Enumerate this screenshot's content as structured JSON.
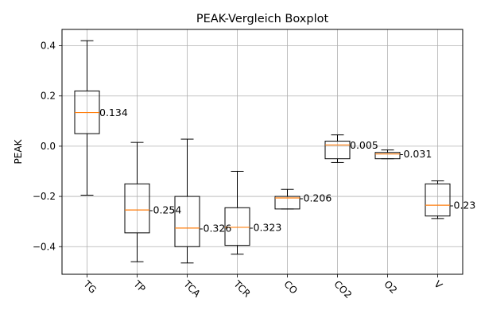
{
  "chart_data": {
    "type": "boxplot",
    "title": "PEAK-Vergleich Boxplot",
    "xlabel": "",
    "ylabel": "PEAK",
    "ylim": [
      -0.51,
      0.465
    ],
    "yticks": [
      0.4,
      0.2,
      0.0,
      -0.2,
      -0.4
    ],
    "ytick_labels": [
      "0.4",
      "0.2",
      "0.0",
      "−0.2",
      "−0.4"
    ],
    "grid": true,
    "xtick_rotation": "rotated -45 degrees",
    "categories": [
      "TG",
      "TP",
      "TCA",
      "TCR",
      "CO",
      "CO2",
      "O2",
      "V"
    ],
    "boxes": [
      {
        "name": "TG",
        "whisker_low": -0.195,
        "q1": 0.05,
        "median": 0.134,
        "q3": 0.22,
        "whisker_high": 0.42,
        "median_label": "0.134"
      },
      {
        "name": "TP",
        "whisker_low": -0.46,
        "q1": -0.345,
        "median": -0.254,
        "q3": -0.15,
        "whisker_high": 0.015,
        "median_label": "-0.254"
      },
      {
        "name": "TCA",
        "whisker_low": -0.465,
        "q1": -0.4,
        "median": -0.326,
        "q3": -0.2,
        "whisker_high": 0.028,
        "median_label": "-0.326"
      },
      {
        "name": "TCR",
        "whisker_low": -0.43,
        "q1": -0.395,
        "median": -0.323,
        "q3": -0.245,
        "whisker_high": -0.1,
        "median_label": "-0.323"
      },
      {
        "name": "CO",
        "whisker_low": -0.25,
        "q1": -0.25,
        "median": -0.206,
        "q3": -0.2,
        "whisker_high": -0.172,
        "median_label": "-0.206"
      },
      {
        "name": "CO2",
        "whisker_low": -0.065,
        "q1": -0.05,
        "median": 0.005,
        "q3": 0.02,
        "whisker_high": 0.045,
        "median_label": "0.005"
      },
      {
        "name": "O2",
        "whisker_low": -0.05,
        "q1": -0.05,
        "median": -0.031,
        "q3": -0.025,
        "whisker_high": -0.015,
        "median_label": "-0.031"
      },
      {
        "name": "V",
        "whisker_low": -0.288,
        "q1": -0.278,
        "median": -0.235,
        "q3": -0.15,
        "whisker_high": -0.138,
        "median_label": "-0.23"
      }
    ],
    "colors": {
      "box": "#000000",
      "median": "#ff7f0e",
      "grid": "#b0b0b0",
      "background": "#ffffff"
    }
  }
}
